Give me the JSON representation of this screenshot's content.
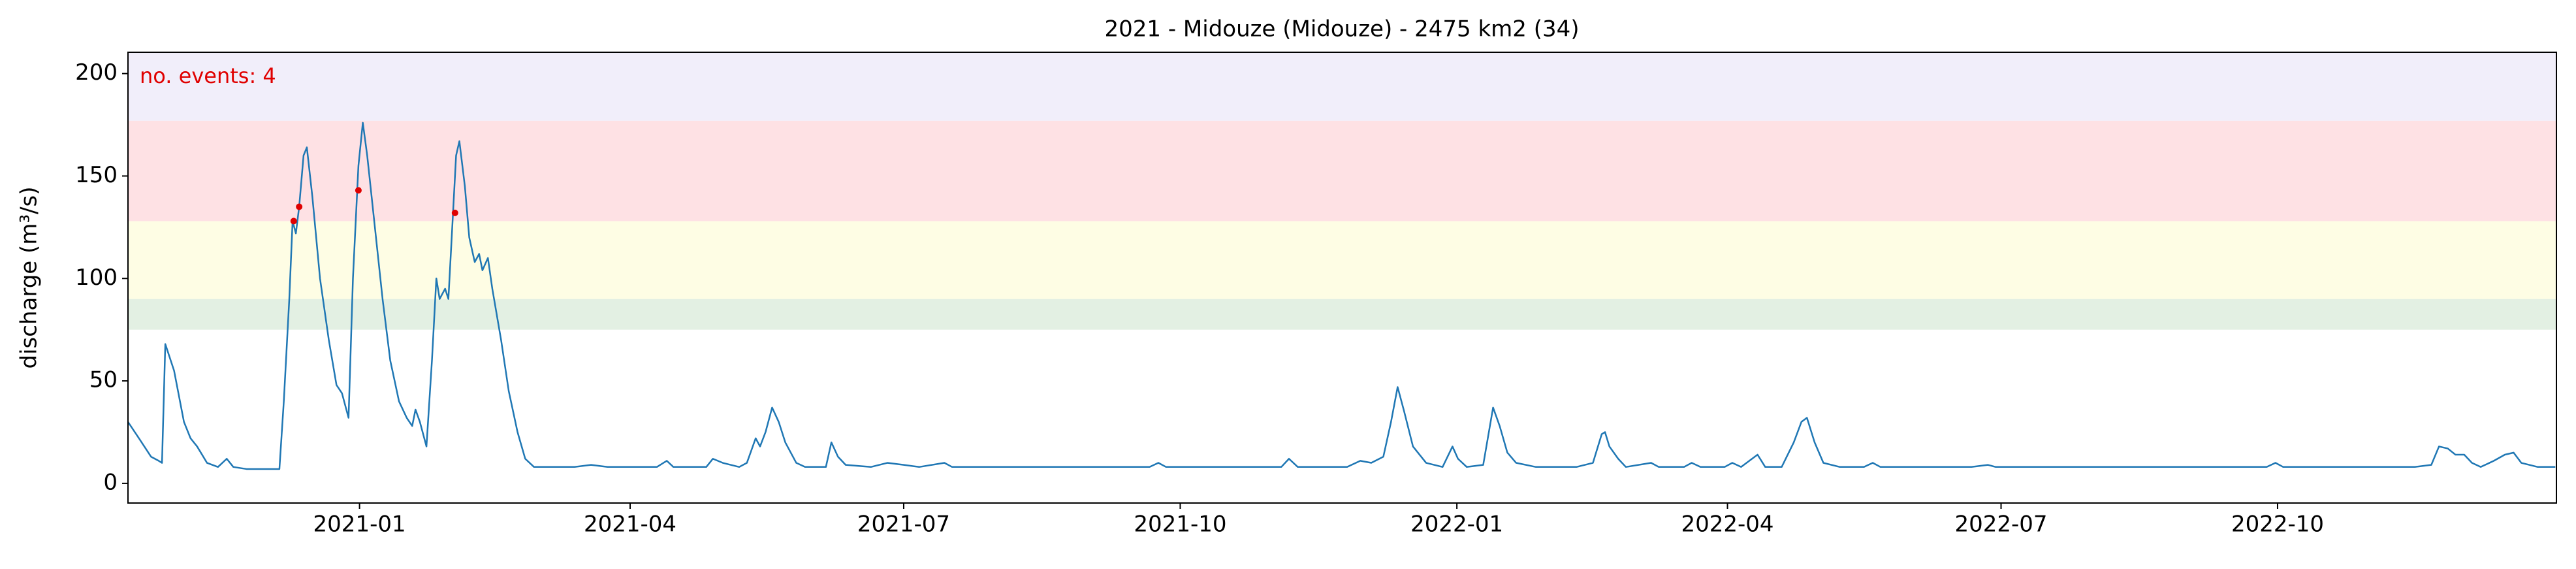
{
  "chart_data": {
    "type": "line",
    "title": "2021 - Midouze (Midouze) - 2475 km2 (34)",
    "ylabel": "discharge (m³/s)",
    "annotation": "no. events: 4",
    "annotation_color": "#e00000",
    "xlim": [
      2020.789,
      2023.002
    ],
    "ylim": [
      -9.6,
      210.4
    ],
    "yticks": [
      0,
      50,
      100,
      150,
      200
    ],
    "xticks": [
      {
        "value": 2021.0,
        "label": "2021-01"
      },
      {
        "value": 2021.2466,
        "label": "2021-04"
      },
      {
        "value": 2021.4959,
        "label": "2021-07"
      },
      {
        "value": 2021.7479,
        "label": "2021-10"
      },
      {
        "value": 2022.0,
        "label": "2022-01"
      },
      {
        "value": 2022.2466,
        "label": "2022-04"
      },
      {
        "value": 2022.4959,
        "label": "2022-07"
      },
      {
        "value": 2022.7479,
        "label": "2022-10"
      }
    ],
    "grid": false,
    "bands": [
      {
        "from": 75,
        "to": 90,
        "color": "#e3f0e3"
      },
      {
        "from": 90,
        "to": 128,
        "color": "#fefde4"
      },
      {
        "from": 128,
        "to": 177,
        "color": "#fee1e4"
      },
      {
        "from": 177,
        "to": 250,
        "color": "#f1eefa"
      }
    ],
    "series": [
      {
        "type": "line",
        "color": "#1f77b4",
        "x": [
          2020.789,
          2020.799,
          2020.81,
          2020.817,
          2020.82,
          2020.823,
          2020.831,
          2020.84,
          2020.846,
          2020.852,
          2020.861,
          2020.871,
          2020.879,
          2020.885,
          2020.897,
          2020.927,
          2020.931,
          2020.936,
          2020.939,
          2020.942,
          2020.945,
          2020.949,
          2020.952,
          2020.957,
          2020.964,
          2020.972,
          2020.979,
          2020.984,
          2020.99,
          2020.994,
          2020.999,
          2021.003,
          2021.007,
          2021.013,
          2021.021,
          2021.028,
          2021.036,
          2021.043,
          2021.048,
          2021.051,
          2021.055,
          2021.061,
          2021.066,
          2021.07,
          2021.073,
          2021.078,
          2021.081,
          2021.085,
          2021.088,
          2021.091,
          2021.096,
          2021.1,
          2021.105,
          2021.109,
          2021.112,
          2021.117,
          2021.121,
          2021.129,
          2021.136,
          2021.144,
          2021.151,
          2021.159,
          2021.196,
          2021.211,
          2021.226,
          2021.271,
          2021.28,
          2021.286,
          2021.316,
          2021.322,
          2021.331,
          2021.346,
          2021.353,
          2021.361,
          2021.365,
          2021.37,
          2021.376,
          2021.382,
          2021.388,
          2021.398,
          2021.406,
          2021.425,
          2021.43,
          2021.436,
          2021.443,
          2021.466,
          2021.481,
          2021.496,
          2021.51,
          2021.533,
          2021.54,
          2021.6,
          2021.72,
          2021.728,
          2021.735,
          2021.84,
          2021.847,
          2021.855,
          2021.9,
          2021.912,
          2021.922,
          2021.933,
          2021.94,
          2021.946,
          2021.952,
          2021.96,
          2021.972,
          2021.987,
          2021.996,
          2022.001,
          2022.009,
          2022.024,
          2022.033,
          2022.039,
          2022.046,
          2022.054,
          2022.072,
          2022.109,
          2022.124,
          2022.132,
          2022.135,
          2022.139,
          2022.147,
          2022.154,
          2022.177,
          2022.184,
          2022.207,
          2022.214,
          2022.222,
          2022.244,
          2022.251,
          2022.259,
          2022.274,
          2022.281,
          2022.296,
          2022.307,
          2022.314,
          2022.319,
          2022.326,
          2022.334,
          2022.349,
          2022.371,
          2022.379,
          2022.386,
          2022.469,
          2022.484,
          2022.491,
          2022.738,
          2022.746,
          2022.753,
          2022.873,
          2022.888,
          2022.895,
          2022.903,
          2022.91,
          2022.918,
          2022.925,
          2022.933,
          2022.945,
          2022.955,
          2022.963,
          2022.97,
          2022.985,
          2023.001
        ],
        "values": [
          30,
          22,
          13,
          11,
          10,
          68,
          55,
          30,
          22,
          18,
          10,
          8,
          12,
          8,
          7,
          7,
          40,
          90,
          128,
          122,
          135,
          160,
          164,
          140,
          100,
          70,
          48,
          44,
          32,
          100,
          155,
          176,
          160,
          130,
          90,
          60,
          40,
          32,
          28,
          36,
          30,
          18,
          60,
          100,
          90,
          95,
          90,
          130,
          160,
          167,
          145,
          120,
          108,
          112,
          104,
          110,
          95,
          70,
          45,
          25,
          12,
          8,
          8,
          9,
          8,
          8,
          11,
          8,
          8,
          12,
          10,
          8,
          10,
          22,
          18,
          25,
          37,
          30,
          20,
          10,
          8,
          8,
          20,
          13,
          9,
          8,
          10,
          9,
          8,
          10,
          8,
          8,
          8,
          10,
          8,
          8,
          12,
          8,
          8,
          11,
          10,
          13,
          30,
          47,
          35,
          18,
          10,
          8,
          18,
          12,
          8,
          9,
          37,
          28,
          15,
          10,
          8,
          8,
          10,
          24,
          25,
          18,
          12,
          8,
          10,
          8,
          8,
          10,
          8,
          8,
          10,
          8,
          14,
          8,
          8,
          20,
          30,
          32,
          20,
          10,
          8,
          8,
          10,
          8,
          8,
          9,
          8,
          8,
          10,
          8,
          8,
          9,
          18,
          17,
          14,
          14,
          10,
          8,
          11,
          14,
          15,
          10,
          8,
          8
        ]
      },
      {
        "type": "scatter",
        "color": "#e00000",
        "x": [
          2020.94,
          2020.945,
          2020.999,
          2021.087
        ],
        "values": [
          128,
          135,
          143,
          132
        ]
      }
    ]
  }
}
